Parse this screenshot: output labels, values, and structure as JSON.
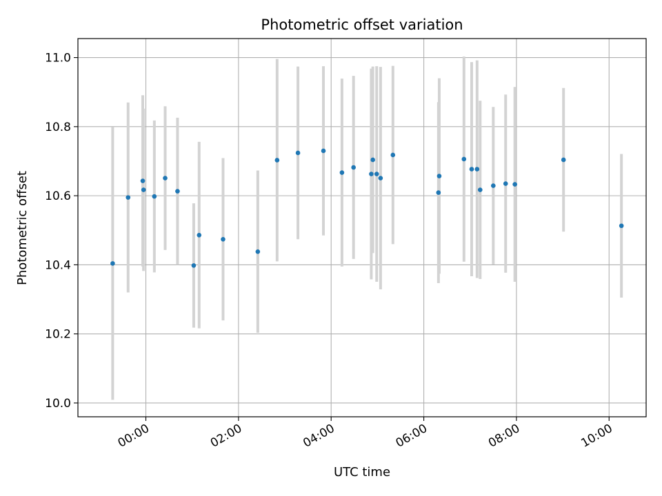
{
  "chart_data": {
    "type": "scatter",
    "title": "Photometric offset variation",
    "xlabel": "UTC time",
    "ylabel": "Photometric offset",
    "x_unit": "hours UTC",
    "xlim": [
      "-01:28",
      "10:48"
    ],
    "ylim": [
      9.96,
      11.055
    ],
    "grid": true,
    "x_ticks": [
      {
        "value": "00:00",
        "label": "00:00"
      },
      {
        "value": "02:00",
        "label": "02:00"
      },
      {
        "value": "04:00",
        "label": "04:00"
      },
      {
        "value": "06:00",
        "label": "06:00"
      },
      {
        "value": "08:00",
        "label": "08:00"
      },
      {
        "value": "10:00",
        "label": "10:00"
      }
    ],
    "y_ticks": [
      10.0,
      10.2,
      10.4,
      10.6,
      10.8,
      11.0
    ],
    "y_tick_labels": [
      "10.0",
      "10.2",
      "10.4",
      "10.6",
      "10.8",
      "11.0"
    ],
    "colors": {
      "point": "#1f77b4",
      "errorbar": "#d3d3d3",
      "grid": "#b0b0b0"
    },
    "points": [
      {
        "time": "-00:43",
        "y": 10.404,
        "err": 0.395
      },
      {
        "time": "-00:23",
        "y": 10.595,
        "err": 0.275
      },
      {
        "time": "-00:04",
        "y": 10.643,
        "err": 0.248
      },
      {
        "time": "-00:03",
        "y": 10.617,
        "err": 0.235
      },
      {
        "time": "00:11",
        "y": 10.598,
        "err": 0.22
      },
      {
        "time": "00:25",
        "y": 10.651,
        "err": 0.208
      },
      {
        "time": "00:41",
        "y": 10.613,
        "err": 0.213
      },
      {
        "time": "01:02",
        "y": 10.398,
        "err": 0.18
      },
      {
        "time": "01:09",
        "y": 10.486,
        "err": 0.27
      },
      {
        "time": "01:40",
        "y": 10.474,
        "err": 0.235
      },
      {
        "time": "02:25",
        "y": 10.438,
        "err": 0.235
      },
      {
        "time": "02:50",
        "y": 10.703,
        "err": 0.293
      },
      {
        "time": "03:17",
        "y": 10.724,
        "err": 0.25
      },
      {
        "time": "03:50",
        "y": 10.73,
        "err": 0.245
      },
      {
        "time": "04:14",
        "y": 10.667,
        "err": 0.272
      },
      {
        "time": "04:29",
        "y": 10.682,
        "err": 0.265
      },
      {
        "time": "04:52",
        "y": 10.663,
        "err": 0.305
      },
      {
        "time": "04:54",
        "y": 10.704,
        "err": 0.27
      },
      {
        "time": "04:59",
        "y": 10.663,
        "err": 0.312
      },
      {
        "time": "05:04",
        "y": 10.651,
        "err": 0.322
      },
      {
        "time": "05:20",
        "y": 10.718,
        "err": 0.258
      },
      {
        "time": "06:19",
        "y": 10.609,
        "err": 0.262
      },
      {
        "time": "06:20",
        "y": 10.657,
        "err": 0.283
      },
      {
        "time": "06:52",
        "y": 10.706,
        "err": 0.297
      },
      {
        "time": "07:02",
        "y": 10.677,
        "err": 0.31
      },
      {
        "time": "07:09",
        "y": 10.677,
        "err": 0.315
      },
      {
        "time": "07:13",
        "y": 10.617,
        "err": 0.258
      },
      {
        "time": "07:30",
        "y": 10.629,
        "err": 0.228
      },
      {
        "time": "07:46",
        "y": 10.635,
        "err": 0.258
      },
      {
        "time": "07:58",
        "y": 10.633,
        "err": 0.282
      },
      {
        "time": "09:01",
        "y": 10.704,
        "err": 0.208
      },
      {
        "time": "10:16",
        "y": 10.513,
        "err": 0.208
      }
    ]
  }
}
